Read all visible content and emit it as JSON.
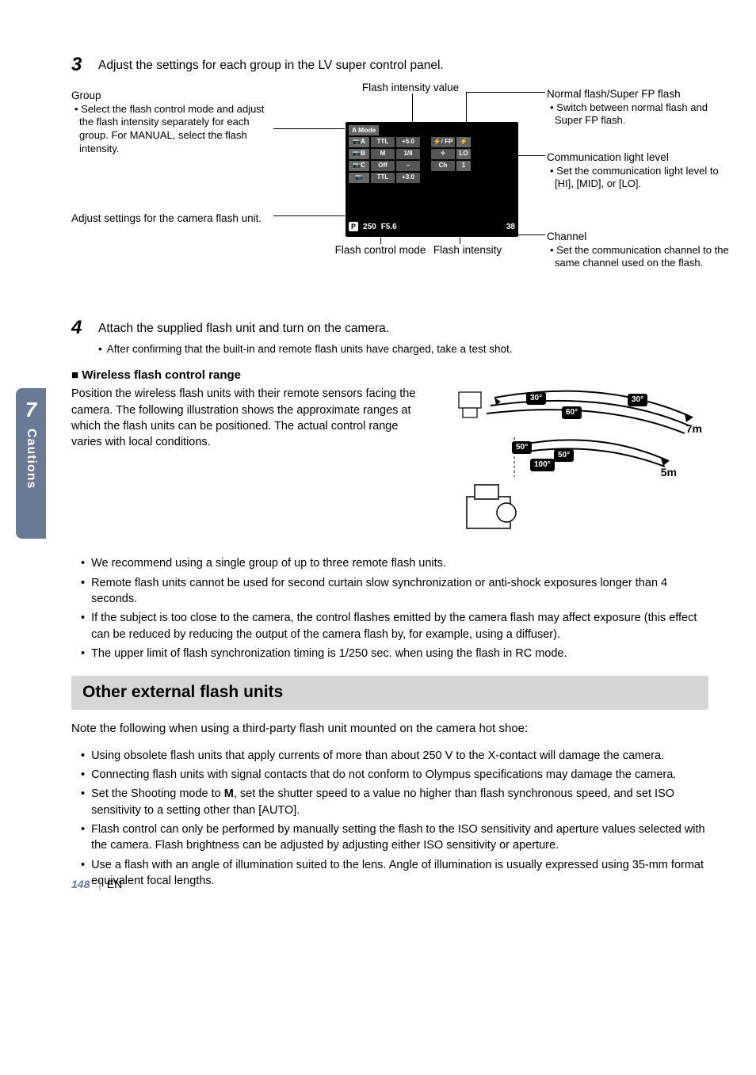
{
  "sideTab": {
    "number": "7",
    "label": "Cautions"
  },
  "step3": {
    "num": "3",
    "text": "Adjust the settings for each group in the LV super control panel.",
    "callouts": {
      "group_title": "Group",
      "group_body": "Select the flash control mode and adjust the flash intensity separately for each group. For MANUAL, select the flash intensity.",
      "camera_unit": "Adjust settings for the camera flash unit.",
      "flash_intensity_value": "Flash intensity value",
      "flash_control_mode": "Flash control mode",
      "flash_intensity": "Flash intensity",
      "normal_fp_title": "Normal flash/Super FP flash",
      "normal_fp_body": "Switch between normal flash and Super FP flash.",
      "comm_title": "Communication light level",
      "comm_body": "Set the communication light level to [HI], [MID], or [LO].",
      "channel_title": "Channel",
      "channel_body": "Set the communication channel to the same channel used on the flash."
    },
    "lcd": {
      "mode_label": "A Mode",
      "rows": [
        {
          "grp": "A",
          "mode": "TTL",
          "val": "+5.0",
          "fp": "⚡/ FP",
          "icon": "⚡"
        },
        {
          "grp": "B",
          "mode": "M",
          "val": "1/8",
          "fp": "✧",
          "icon": "LO"
        },
        {
          "grp": "C",
          "mode": "Off",
          "val": "–",
          "fp": "Ch",
          "icon": "1"
        }
      ],
      "row_cam": {
        "grp": "📷",
        "mode": "TTL",
        "val": "+3.0"
      },
      "bottom": {
        "p": "P",
        "shutter": "250",
        "aperture": "F5.6",
        "shots": "38"
      }
    }
  },
  "step4": {
    "num": "4",
    "text": "Attach the supplied flash unit and turn on the camera.",
    "bullet": "After confirming that the built-in and remote flash units have charged, take a test shot."
  },
  "wireless": {
    "head": "Wireless flash control range",
    "body": "Position the wireless flash units with their remote sensors facing the camera. The following illustration shows the approximate ranges at which the flash units can be positioned. The actual control range varies with local conditions.",
    "angles": {
      "top1": "30°",
      "top2": "60°",
      "top3": "30°",
      "bot1": "50°",
      "bot2": "100°",
      "bot3": "50°"
    },
    "dist": {
      "far": "7m",
      "near": "5m"
    }
  },
  "notes_list": [
    "We recommend using a single group of up to three remote flash units.",
    "Remote flash units cannot be used for second curtain slow synchronization or anti-shock exposures longer than 4 seconds.",
    "If the subject is too close to the camera, the control flashes emitted by the camera flash may affect exposure (this effect can be reduced by reducing the output of the camera flash by, for example, using a diffuser).",
    "The upper limit of flash synchronization timing is 1/250 sec. when using the flash in RC mode."
  ],
  "other": {
    "title": "Other external flash units",
    "intro": "Note the following when using a third-party flash unit mounted on the camera hot shoe:",
    "items": [
      "Using obsolete flash units that apply currents of more than about 250 V to the X-contact will damage the camera.",
      "Connecting flash units with signal contacts that do not conform to Olympus specifications may damage the camera.",
      "Set the Shooting mode to <span class=\"mode-M\">M</span>, set the shutter speed to a value no higher than flash synchronous speed, and set ISO sensitivity to a setting other than [AUTO].",
      "Flash control can only be performed by manually setting the flash to the ISO sensitivity and aperture values selected with the camera. Flash brightness can be adjusted by adjusting either ISO sensitivity or aperture.",
      "Use a flash with an angle of illumination suited to the lens. Angle of illumination is usually expressed using 35-mm format equivalent focal lengths."
    ]
  },
  "footer": {
    "page": "148",
    "lang": "EN"
  },
  "colors": {
    "tab_bg": "#6a7a95",
    "section_bg": "#d6d6d6",
    "lcd_bg": "#000000",
    "lcd_cell": "#555555"
  }
}
